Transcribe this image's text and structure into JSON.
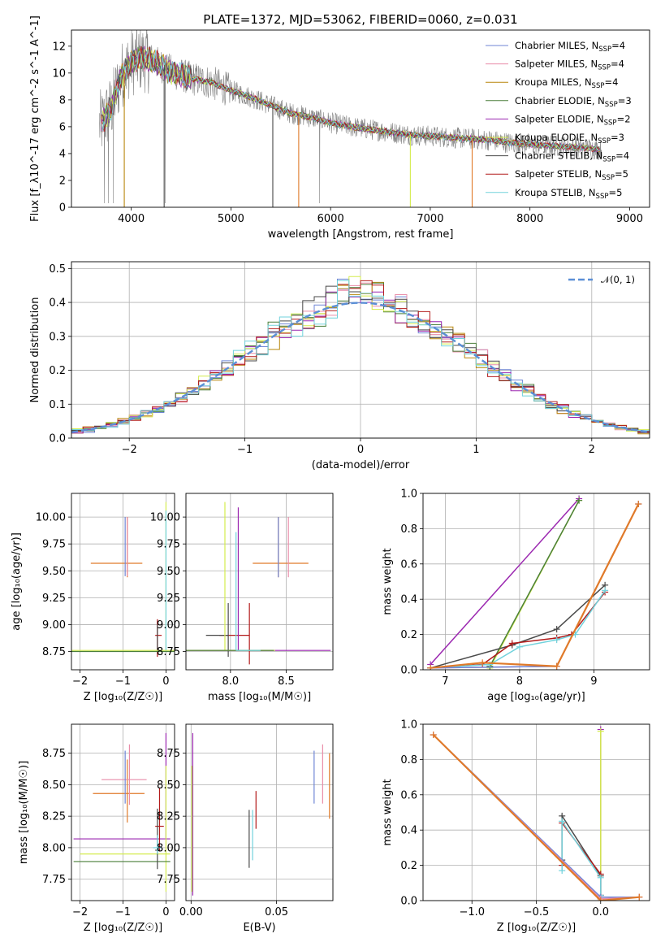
{
  "colors": {
    "chabrier_miles": "#6f86d6",
    "salpeter_miles": "#e98ca8",
    "kroupa_miles": "#b8860b",
    "chabrier_elodie": "#4a7f3a",
    "salpeter_elodie": "#9b27b0",
    "kroupa_elodie": "#d4ec4e",
    "chabrier_stelib": "#4a4a4a",
    "salpeter_stelib": "#b31b1b",
    "kroupa_stelib": "#72d2dc",
    "best": "#e07a2a",
    "data": "#808080",
    "gauss": "#5b8fd6"
  },
  "chart_data": [
    {
      "id": "spectrum",
      "type": "line",
      "title": "PLATE=1372, MJD=53062, FIBERID=0060, z=0.031",
      "xlabel": "wavelength [Angstrom, rest frame]",
      "ylabel": "Flux [f_λ10^-17 erg cm^-2 s^-1 A^-1]",
      "xlim": [
        3400,
        9200
      ],
      "ylim": [
        0,
        13.2
      ],
      "xticks": [
        "4000",
        "5000",
        "6000",
        "7000",
        "8000",
        "9000"
      ],
      "yticks": [
        "0",
        "2",
        "4",
        "6",
        "8",
        "10",
        "12"
      ],
      "legend_position": "upper-right",
      "legend": [
        {
          "label": "Chabrier MILES, N",
          "sub": "SSP",
          "tail": "=4",
          "color_key": "chabrier_miles"
        },
        {
          "label": "Salpeter MILES, N",
          "sub": "SSP",
          "tail": "=4",
          "color_key": "salpeter_miles"
        },
        {
          "label": "Kroupa MILES, N",
          "sub": "SSP",
          "tail": "=4",
          "color_key": "kroupa_miles"
        },
        {
          "label": "Chabrier ELODIE, N",
          "sub": "SSP",
          "tail": "=3",
          "color_key": "chabrier_elodie"
        },
        {
          "label": "Salpeter ELODIE, N",
          "sub": "SSP",
          "tail": "=2",
          "color_key": "salpeter_elodie"
        },
        {
          "label": "Kroupa ELODIE, N",
          "sub": "SSP",
          "tail": "=3",
          "color_key": "kroupa_elodie"
        },
        {
          "label": "Chabrier STELIB, N",
          "sub": "SSP",
          "tail": "=4",
          "color_key": "chabrier_stelib"
        },
        {
          "label": "Salpeter STELIB, N",
          "sub": "SSP",
          "tail": "=5",
          "color_key": "salpeter_stelib"
        },
        {
          "label": "Kroupa STELIB, N",
          "sub": "SSP",
          "tail": "=5",
          "color_key": "kroupa_stelib"
        }
      ],
      "model_curve": {
        "x": [
          3700,
          3800,
          3900,
          4000,
          4100,
          4200,
          4400,
          4600,
          4800,
          5000,
          5200,
          5400,
          5600,
          5800,
          6000,
          6200,
          6400,
          6600,
          6800,
          7000,
          7200,
          7400,
          7600,
          7800,
          8000,
          8200,
          8400,
          8600,
          8700
        ],
        "y": [
          6.2,
          7.4,
          9.8,
          10.8,
          11.1,
          11.0,
          10.1,
          9.6,
          9.3,
          8.7,
          8.2,
          7.6,
          7.0,
          6.7,
          6.3,
          6.0,
          5.8,
          5.6,
          5.4,
          5.3,
          5.2,
          5.1,
          5.0,
          4.8,
          4.7,
          4.6,
          4.5,
          4.4,
          4.3
        ]
      },
      "spike_lines": [
        {
          "x": 3930,
          "color_key": "kroupa_miles"
        },
        {
          "x": 4330,
          "color_key": "chabrier_stelib"
        },
        {
          "x": 5420,
          "color_key": "chabrier_stelib"
        },
        {
          "x": 5680,
          "color_key": "best"
        },
        {
          "x": 6800,
          "color_key": "kroupa_elodie"
        },
        {
          "x": 7420,
          "color_key": "best"
        }
      ]
    },
    {
      "id": "residuals",
      "type": "line",
      "xlabel": "(data-model)/error",
      "ylabel": "Normed distribution",
      "xlim": [
        -2.5,
        2.5
      ],
      "ylim": [
        0,
        0.52
      ],
      "xticks": [
        "−2",
        "−1",
        "0",
        "1",
        "2"
      ],
      "yticks": [
        "0.0",
        "0.1",
        "0.2",
        "0.3",
        "0.4",
        "0.5"
      ],
      "legend": [
        {
          "label": "𝒩(0, 1)",
          "color_key": "gauss",
          "style": "dashed"
        }
      ],
      "legend_position": "upper-right"
    },
    {
      "id": "age_vs_Z",
      "type": "scatter",
      "xlabel": "Z [log₁₀(Z/Z☉)]",
      "ylabel": "age  [log₁₀(age/yr)]",
      "xlim": [
        -2.2,
        0.2
      ],
      "ylim": [
        8.58,
        10.22
      ],
      "xticks": [
        "−2",
        "−1",
        "0"
      ],
      "yticks": [
        "8.75",
        "9.00",
        "9.25",
        "9.50",
        "9.75",
        "10.00"
      ],
      "crosses": [
        {
          "x": -0.9,
          "y": 9.57,
          "xerr": [
            0.85,
            0.35
          ],
          "yerr": [
            0.13,
            0.43
          ],
          "color_key": "best"
        },
        {
          "x": -0.95,
          "y": 9.75,
          "xerr": [
            0,
            0
          ],
          "yerr": [
            0.3,
            0.25
          ],
          "color_key": "chabrier_miles"
        },
        {
          "x": -0.9,
          "y": 9.75,
          "xerr": [
            0,
            0
          ],
          "yerr": [
            0.3,
            0.25
          ],
          "color_key": "salpeter_miles"
        },
        {
          "x": -0.2,
          "y": 8.9,
          "xerr": [
            0.05,
            0.1
          ],
          "yerr": [
            0.2,
            0.15
          ],
          "color_key": "salpeter_stelib"
        },
        {
          "x": -0.2,
          "y": 8.9,
          "xerr": [
            0,
            0
          ],
          "yerr": [
            0.15,
            0.1
          ],
          "color_key": "chabrier_stelib"
        },
        {
          "x": 0.0,
          "y": 8.76,
          "xerr": [
            2.2,
            0.2
          ],
          "yerr": [
            0,
            1.38
          ],
          "color_key": "kroupa_elodie"
        },
        {
          "x": 0.0,
          "y": 8.75,
          "xerr": [
            2.2,
            0.2
          ],
          "yerr": [
            0,
            0
          ],
          "color_key": "chabrier_elodie"
        },
        {
          "x": 0.0,
          "y": 8.76,
          "xerr": [
            0,
            0
          ],
          "yerr": [
            0,
            1.3
          ],
          "color_key": "kroupa_stelib"
        }
      ]
    },
    {
      "id": "age_vs_mass",
      "type": "scatter",
      "xlabel": "mass [log₁₀(M/M☉)]",
      "ylabel": "",
      "xlim": [
        7.6,
        8.92
      ],
      "ylim": [
        8.58,
        10.22
      ],
      "xticks": [
        "8.0",
        "8.5"
      ],
      "yticks": [
        "8.75",
        "9.00",
        "9.25",
        "9.50",
        "9.75",
        "10.00"
      ],
      "crosses": [
        {
          "x": 8.43,
          "y": 9.57,
          "xerr": [
            0.23,
            0.27
          ],
          "yerr": [
            0.13,
            0.43
          ],
          "color_key": "best"
        },
        {
          "x": 8.52,
          "y": 9.57,
          "xerr": [
            0,
            0
          ],
          "yerr": [
            0.13,
            0.43
          ],
          "color_key": "salpeter_miles"
        },
        {
          "x": 8.43,
          "y": 9.57,
          "xerr": [
            0,
            0
          ],
          "yerr": [
            0.13,
            0.43
          ],
          "color_key": "chabrier_miles"
        },
        {
          "x": 8.17,
          "y": 8.9,
          "xerr": [
            0.27,
            0.0
          ],
          "yerr": [
            0.27,
            0.3
          ],
          "color_key": "salpeter_stelib"
        },
        {
          "x": 7.98,
          "y": 8.9,
          "xerr": [
            0.2,
            0.0
          ],
          "yerr": [
            0.2,
            0.3
          ],
          "color_key": "chabrier_stelib"
        },
        {
          "x": 8.07,
          "y": 8.76,
          "xerr": [
            0.47,
            0.83
          ],
          "yerr": [
            0.0,
            1.33
          ],
          "color_key": "salpeter_elodie"
        },
        {
          "x": 7.95,
          "y": 8.76,
          "xerr": [
            0.35,
            0.45
          ],
          "yerr": [
            0.0,
            1.38
          ],
          "color_key": "kroupa_elodie"
        },
        {
          "x": 7.89,
          "y": 8.76,
          "xerr": [
            0.3,
            0.5
          ],
          "yerr": [
            0,
            0
          ],
          "color_key": "chabrier_elodie"
        },
        {
          "x": 8.05,
          "y": 8.76,
          "xerr": [
            0.0,
            0.22
          ],
          "yerr": [
            0.0,
            1.1
          ],
          "color_key": "kroupa_stelib"
        }
      ]
    },
    {
      "id": "mass_weight_vs_age",
      "type": "line",
      "xlabel": "age  [log₁₀(age/yr)]",
      "ylabel": "mass weight",
      "xlim": [
        6.7,
        9.75
      ],
      "ylim": [
        0,
        1.0
      ],
      "xticks": [
        "7",
        "8",
        "9"
      ],
      "yticks": [
        "0.0",
        "0.2",
        "0.4",
        "0.6",
        "0.8",
        "1.0"
      ],
      "series": [
        {
          "color_key": "salpeter_elodie",
          "x": [
            6.8,
            8.8
          ],
          "y": [
            0.03,
            0.97
          ]
        },
        {
          "color_key": "kroupa_elodie",
          "x": [
            7.6,
            8.8
          ],
          "y": [
            0.01,
            0.96
          ]
        },
        {
          "color_key": "chabrier_elodie",
          "x": [
            7.6,
            8.8
          ],
          "y": [
            0.02,
            0.96
          ]
        },
        {
          "color_key": "chabrier_stelib",
          "x": [
            6.8,
            7.9,
            8.5,
            9.15
          ],
          "y": [
            0.01,
            0.14,
            0.23,
            0.48
          ]
        },
        {
          "color_key": "salpeter_stelib",
          "x": [
            6.8,
            7.5,
            7.9,
            8.5,
            8.7,
            9.15
          ],
          "y": [
            0.01,
            0.03,
            0.15,
            0.18,
            0.2,
            0.44
          ]
        },
        {
          "color_key": "kroupa_stelib",
          "x": [
            6.8,
            7.6,
            8.0,
            8.5,
            8.75,
            9.15
          ],
          "y": [
            0.01,
            0.03,
            0.13,
            0.17,
            0.2,
            0.45
          ]
        },
        {
          "color_key": "salpeter_miles",
          "x": [
            6.8,
            8.5,
            9.6
          ],
          "y": [
            0.01,
            0.02,
            0.94
          ]
        },
        {
          "color_key": "chabrier_miles",
          "x": [
            6.8,
            8.5,
            9.6
          ],
          "y": [
            0.01,
            0.02,
            0.94
          ]
        },
        {
          "color_key": "best",
          "x": [
            6.8,
            7.5,
            8.5,
            9.6
          ],
          "y": [
            0.01,
            0.04,
            0.02,
            0.94
          ]
        }
      ]
    },
    {
      "id": "mass_vs_Z",
      "type": "scatter",
      "xlabel": "Z [log₁₀(Z/Z☉)]",
      "ylabel": "mass [log₁₀(M/M☉)]",
      "xlim": [
        -2.2,
        0.2
      ],
      "ylim": [
        7.58,
        8.98
      ],
      "xticks": [
        "−2",
        "−1",
        "0"
      ],
      "yticks": [
        "7.75",
        "8.00",
        "8.25",
        "8.50",
        "8.75"
      ],
      "crosses": [
        {
          "x": -0.9,
          "y": 8.43,
          "xerr": [
            0.8,
            0.4
          ],
          "yerr": [
            0.23,
            0.27
          ],
          "color_key": "best"
        },
        {
          "x": -0.85,
          "y": 8.54,
          "xerr": [
            0.65,
            0.4
          ],
          "yerr": [
            0.2,
            0.28
          ],
          "color_key": "salpeter_miles"
        },
        {
          "x": -0.95,
          "y": 8.55,
          "xerr": [
            0,
            0
          ],
          "yerr": [
            0.2,
            0.22
          ],
          "color_key": "chabrier_miles"
        },
        {
          "x": 0.0,
          "y": 8.07,
          "xerr": [
            2.15,
            0.1
          ],
          "yerr": [
            0,
            0.84
          ],
          "color_key": "salpeter_elodie"
        },
        {
          "x": 0.0,
          "y": 7.95,
          "xerr": [
            2.0,
            0.1
          ],
          "yerr": [
            0.3,
            0.7
          ],
          "color_key": "kroupa_elodie"
        },
        {
          "x": 0.0,
          "y": 7.89,
          "xerr": [
            2.15,
            0.1
          ],
          "yerr": [
            0,
            0
          ],
          "color_key": "chabrier_elodie"
        },
        {
          "x": -0.15,
          "y": 8.17,
          "xerr": [
            0.1,
            0.1
          ],
          "yerr": [
            0.2,
            0.3
          ],
          "color_key": "salpeter_stelib"
        },
        {
          "x": -0.2,
          "y": 7.98,
          "xerr": [
            0.05,
            0.05
          ],
          "yerr": [
            0.15,
            0.33
          ],
          "color_key": "chabrier_stelib"
        },
        {
          "x": -0.2,
          "y": 8.0,
          "xerr": [
            0.1,
            0.1
          ],
          "yerr": [
            0.05,
            0.1
          ],
          "color_key": "kroupa_stelib"
        }
      ]
    },
    {
      "id": "mass_vs_ebv",
      "type": "scatter",
      "xlabel": "E(B-V)",
      "ylabel": "",
      "xlim": [
        -0.003,
        0.083
      ],
      "ylim": [
        7.58,
        8.98
      ],
      "xticks": [
        "0.00",
        "0.05"
      ],
      "yticks": [
        "7.75",
        "8.00",
        "8.25",
        "8.50",
        "8.75"
      ],
      "crosses": [
        {
          "x": 0.001,
          "y": 8.07,
          "xerr": [
            0,
            0
          ],
          "yerr": [
            0.45,
            0.84
          ],
          "color_key": "salpeter_elodie"
        },
        {
          "x": 0.0005,
          "y": 7.95,
          "xerr": [
            0,
            0
          ],
          "yerr": [
            0.3,
            0.7
          ],
          "color_key": "kroupa_elodie"
        },
        {
          "x": 0.034,
          "y": 8.07,
          "xerr": [
            0,
            0
          ],
          "yerr": [
            0.23,
            0.23
          ],
          "color_key": "chabrier_stelib"
        },
        {
          "x": 0.036,
          "y": 8.07,
          "xerr": [
            0,
            0
          ],
          "yerr": [
            0.17,
            0.23
          ],
          "color_key": "kroupa_stelib"
        },
        {
          "x": 0.038,
          "y": 8.3,
          "xerr": [
            0,
            0
          ],
          "yerr": [
            0.15,
            0.15
          ],
          "color_key": "salpeter_stelib"
        },
        {
          "x": 0.072,
          "y": 8.55,
          "xerr": [
            0,
            0
          ],
          "yerr": [
            0.2,
            0.22
          ],
          "color_key": "chabrier_miles"
        },
        {
          "x": 0.077,
          "y": 8.55,
          "xerr": [
            0,
            0
          ],
          "yerr": [
            0.2,
            0.27
          ],
          "color_key": "salpeter_miles"
        },
        {
          "x": 0.081,
          "y": 8.5,
          "xerr": [
            0,
            0
          ],
          "yerr": [
            0.27,
            0.25
          ],
          "color_key": "best"
        }
      ]
    },
    {
      "id": "mass_weight_vs_Z",
      "type": "line",
      "xlabel": "Z [log₁₀(Z/Z☉)]",
      "ylabel": "mass weight",
      "xlim": [
        -1.38,
        0.38
      ],
      "ylim": [
        0,
        1.0
      ],
      "xticks": [
        "−1.0",
        "−0.5",
        "0.0"
      ],
      "yticks": [
        "0.0",
        "0.2",
        "0.4",
        "0.6",
        "0.8",
        "1.0"
      ],
      "series": [
        {
          "color_key": "salpeter_elodie",
          "x": [
            0.0,
            0.0
          ],
          "y": [
            0.03,
            0.97
          ]
        },
        {
          "color_key": "kroupa_elodie",
          "x": [
            0.0,
            0.0
          ],
          "y": [
            0.01,
            0.96
          ]
        },
        {
          "color_key": "chabrier_stelib",
          "x": [
            -0.3,
            -0.3,
            0.0,
            0.0
          ],
          "y": [
            0.23,
            0.48,
            0.14,
            0.01
          ]
        },
        {
          "color_key": "salpeter_stelib",
          "x": [
            -0.3,
            -0.3,
            0.0,
            0.0
          ],
          "y": [
            0.2,
            0.44,
            0.15,
            0.03
          ]
        },
        {
          "color_key": "kroupa_stelib",
          "x": [
            -0.3,
            -0.3,
            0.0,
            0.0
          ],
          "y": [
            0.17,
            0.45,
            0.13,
            0.03
          ]
        },
        {
          "color_key": "chabrier_miles",
          "x": [
            -1.3,
            0.0,
            0.3
          ],
          "y": [
            0.94,
            0.02,
            0.02
          ]
        },
        {
          "color_key": "salpeter_miles",
          "x": [
            -1.3,
            0.0,
            0.3
          ],
          "y": [
            0.94,
            0.01,
            0.02
          ]
        },
        {
          "color_key": "best",
          "x": [
            -1.3,
            0.0,
            0.3
          ],
          "y": [
            0.94,
            0.0,
            0.02
          ]
        }
      ]
    }
  ]
}
